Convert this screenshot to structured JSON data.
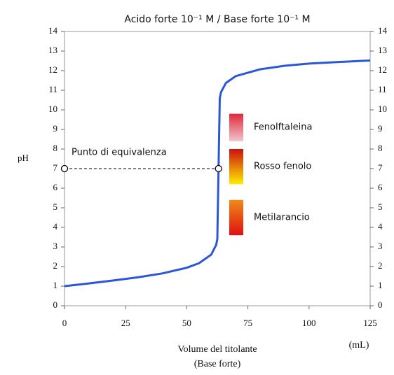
{
  "chart_data": {
    "type": "line",
    "title": "Acido forte 10⁻¹ M / Base forte 10⁻¹ M",
    "y_label": "pH",
    "x_label": "Volume del titolante",
    "x_label_sub": "(Base forte)",
    "x_unit": "(mL)",
    "xlim": [
      0,
      125
    ],
    "xticks": [
      0,
      25,
      50,
      75,
      100,
      125
    ],
    "ylim": [
      0,
      14
    ],
    "yticks": [
      0,
      1,
      2,
      3,
      4,
      5,
      6,
      7,
      8,
      9,
      10,
      11,
      12,
      13,
      14
    ],
    "series": [
      {
        "name": "pH",
        "color": "#2b57d6",
        "x": [
          0,
          10,
          20,
          30,
          40,
          50,
          55,
          60,
          62,
          62.5,
          63,
          63.5,
          64,
          66,
          70,
          80,
          90,
          100,
          110,
          125
        ],
        "values": [
          1.0,
          1.14,
          1.29,
          1.45,
          1.65,
          1.94,
          2.17,
          2.61,
          3.1,
          3.4,
          7,
          10.6,
          10.9,
          11.37,
          11.72,
          12.07,
          12.25,
          12.36,
          12.43,
          12.52
        ]
      }
    ],
    "equivalence": {
      "label": "Punto di equivalenza",
      "x": 63,
      "y": 7
    },
    "indicators": [
      {
        "name": "Fenolftaleina",
        "range": [
          8.4,
          9.8
        ],
        "colors": [
          "#f2c4cc",
          "#e0283c"
        ]
      },
      {
        "name": "Rosso fenolo",
        "range": [
          6.2,
          8.0
        ],
        "colors": [
          "#ffee00",
          "#cc1010"
        ]
      },
      {
        "name": "Metilarancio",
        "range": [
          3.6,
          5.4
        ],
        "colors": [
          "#e01010",
          "#ef8a1a"
        ]
      }
    ]
  }
}
